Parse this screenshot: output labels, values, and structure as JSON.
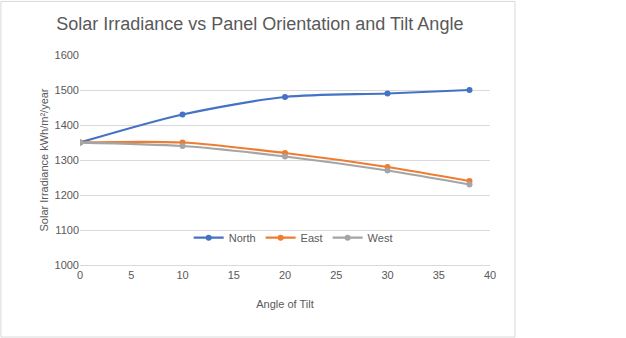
{
  "chart_data": {
    "type": "line",
    "title": "Solar Irradiance vs Panel Orientation and Tilt Angle",
    "x_label": "Angle of Tilt",
    "y_label": "Solar Irradiance kWh/m²/year",
    "x": [
      0,
      10,
      20,
      30,
      38
    ],
    "series": [
      {
        "name": "North",
        "color": "#4472c4",
        "values": [
          1350,
          1430,
          1480,
          1490,
          1500
        ]
      },
      {
        "name": "East",
        "color": "#ed7d31",
        "values": [
          1350,
          1350,
          1320,
          1280,
          1240
        ]
      },
      {
        "name": "West",
        "color": "#a5a5a5",
        "values": [
          1350,
          1340,
          1310,
          1270,
          1230
        ]
      }
    ],
    "xlim": [
      0,
      40
    ],
    "xticks": [
      0,
      5,
      10,
      15,
      20,
      25,
      30,
      35,
      40
    ],
    "ylim": [
      1000,
      1600
    ],
    "yticks": [
      1000,
      1100,
      1200,
      1300,
      1400,
      1500,
      1600
    ],
    "grid": true,
    "legend": "bottom",
    "marker": "circle",
    "line_style": "smooth"
  }
}
